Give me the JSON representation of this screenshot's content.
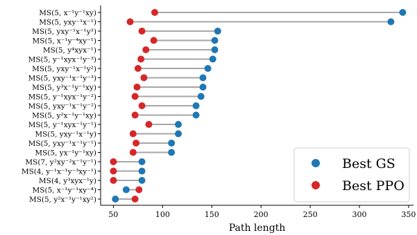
{
  "chart_data": {
    "type": "dumbbell",
    "xlabel": "Path length",
    "xlim": [
      37,
      355
    ],
    "xticks": [
      50,
      100,
      150,
      200,
      250,
      300,
      350
    ],
    "grid": false,
    "legend_position": "bottom-right",
    "series": [
      {
        "name": "Best GS",
        "color": "#1f77b4"
      },
      {
        "name": "Best PPO",
        "color": "#d62728"
      }
    ],
    "connector_color": "#a6a6a6",
    "categories": [
      "MS(5, x⁻¹y⁻¹xy)",
      "MS(5, yxy⁻¹x⁻¹)",
      "MS(5, yxy⁻¹x⁻¹y³)",
      "MS(5, x⁻¹y⁻⁴xy⁻¹)",
      "MS(5, y⁴xyx⁻¹)",
      "MS(5, y⁻¹xyx⁻¹y⁻³)",
      "MS(5, yxy⁻¹x⁻¹y²)",
      "MS(5, yxy⁻¹x⁻¹y⁻³)",
      "MS(5, y³x⁻¹y⁻¹xy)",
      "MS(5, y⁻¹xyx⁻¹y⁻²)",
      "MS(5, yxy⁻¹x⁻¹y⁻²)",
      "MS(5, y²x⁻¹y⁻¹xy)",
      "MS(5, y⁻¹xyx⁻¹y⁻¹)",
      "MS(5, yxy⁻¹x⁻¹y)",
      "MS(5, yxy⁻¹x⁻¹y⁻¹)",
      "MS(5, yx⁻¹y⁻¹xy)",
      "MS(7, y²xy⁻²x⁻¹y⁻¹)",
      "MS(4, y⁻¹x⁻¹y⁻³xy⁻¹)",
      "MS(4, y³xyx⁻¹y)",
      "MS(5, x⁻¹y⁻¹xy⁻⁴)",
      "MS(5, y²x⁻¹y⁻¹xy²)"
    ],
    "gs_values": [
      344,
      332,
      156,
      153,
      153,
      151,
      146,
      141,
      141,
      139,
      134,
      134,
      116,
      116,
      109,
      109,
      79,
      79,
      79,
      63,
      52
    ],
    "ppo_values": [
      92,
      67,
      79,
      91,
      83,
      78,
      75,
      81,
      74,
      72,
      79,
      72,
      86,
      70,
      73,
      70,
      50,
      50,
      50,
      76,
      72
    ]
  }
}
